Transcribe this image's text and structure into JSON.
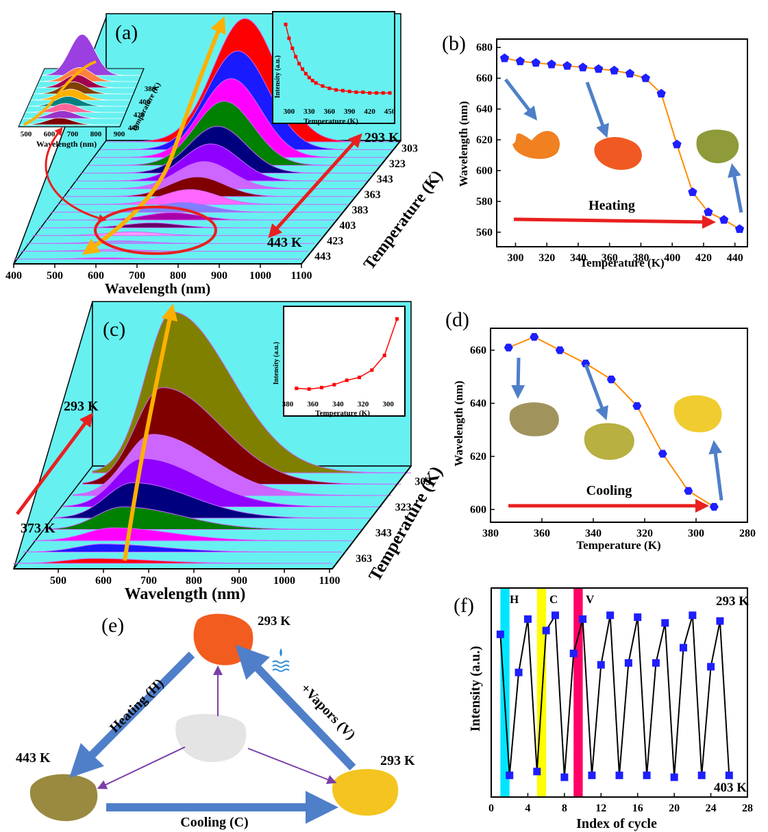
{
  "panels": {
    "a": {
      "label": "(a)",
      "marker_top": "293 K",
      "marker_bottom": "443 K",
      "xlabel": "Wavelength (nm)",
      "ylabel": "Temperature (K)",
      "xticks": [
        "400",
        "500",
        "600",
        "700",
        "800",
        "900",
        "1000",
        "1100"
      ],
      "yticks": [
        "303",
        "323",
        "343",
        "363",
        "383",
        "403",
        "423",
        "443"
      ],
      "left_inset": {
        "xlabel": "Wavelength (nm)",
        "ylabel": "Temperature (K)",
        "xticks": [
          "500",
          "600",
          "700",
          "800",
          "900"
        ],
        "yticks": [
          "380",
          "400",
          "420",
          "440"
        ]
      },
      "inset": {
        "xlabel": "Temperature (K)",
        "ylabel": "Intensity (a.u.)",
        "xticks": [
          "300",
          "330",
          "360",
          "390",
          "420",
          "450"
        ]
      }
    },
    "b": {
      "label": "(b)",
      "annotation": "Heating",
      "xlabel": "Temperature (K)",
      "ylabel": "Wavelength (nm)",
      "xticks": [
        "300",
        "320",
        "340",
        "360",
        "380",
        "400",
        "420",
        "440"
      ],
      "yticks": [
        "560",
        "580",
        "600",
        "620",
        "640",
        "660",
        "680"
      ]
    },
    "c": {
      "label": "(c)",
      "marker_top": "293 K",
      "marker_bottom": "373 K",
      "xlabel": "Wavelength (nm)",
      "ylabel": "Temperature (K)",
      "xticks": [
        "500",
        "600",
        "700",
        "800",
        "900",
        "1000",
        "1100"
      ],
      "yticks": [
        "303",
        "323",
        "343",
        "363"
      ],
      "inset": {
        "xlabel": "Temperature (K)",
        "ylabel": "Intensity (a.u.)",
        "xticks": [
          "380",
          "360",
          "340",
          "320",
          "300"
        ]
      }
    },
    "d": {
      "label": "(d)",
      "annotation": "Cooling",
      "xlabel": "Temperature (K)",
      "ylabel": "Wavelength (nm)",
      "xticks": [
        "380",
        "360",
        "340",
        "320",
        "300",
        "280"
      ],
      "yticks": [
        "600",
        "620",
        "640",
        "660"
      ]
    },
    "e": {
      "label": "(e)",
      "temp_top": "293 K",
      "temp_left": "443 K",
      "temp_right": "293 K",
      "edge_heating": "Heating (H)",
      "edge_vapors": "+Vapors (V)",
      "edge_cooling": "Cooling (C)"
    },
    "f": {
      "label": "(f)",
      "marker_h": "H",
      "marker_c": "C",
      "marker_v": "V",
      "temp_high": "293 K",
      "temp_low": "403 K",
      "xlabel": "Index of cycle",
      "ylabel": "Intensity (a.u.)",
      "xticks": [
        "0",
        "4",
        "8",
        "12",
        "16",
        "20",
        "24",
        "28"
      ]
    }
  },
  "chart_data": [
    {
      "id": "a-main",
      "type": "area",
      "x_range": [
        400,
        1100
      ],
      "temperatures": [
        293,
        303,
        313,
        323,
        333,
        343,
        353,
        363,
        373,
        383,
        393,
        403,
        413,
        423,
        433,
        443
      ],
      "peak_wavelength": [
        673,
        671,
        670,
        669,
        668,
        667,
        666,
        665,
        663,
        660,
        650,
        617,
        586,
        573,
        568,
        562
      ],
      "relative_peak_height": [
        1.0,
        0.8,
        0.64,
        0.52,
        0.38,
        0.3,
        0.22,
        0.16,
        0.12,
        0.08,
        0.06,
        0.04,
        0.03,
        0.02,
        0.015,
        0.01
      ],
      "series_colors": [
        "#ff0000",
        "#1a1aff",
        "#ff00ff",
        "#008000",
        "#00007f",
        "#8f00ff",
        "#cc66ff",
        "#800000",
        "#ff66ff",
        "#7f7fff",
        "#aa00aa",
        "#660066",
        "#ff99ff",
        "#9999ff",
        "#cc99ff",
        "#ff00ff"
      ]
    },
    {
      "id": "a-inset",
      "type": "line",
      "x": [
        295,
        300,
        305,
        310,
        315,
        320,
        325,
        330,
        335,
        340,
        350,
        360,
        370,
        380,
        390,
        400,
        410,
        420,
        430,
        440,
        450
      ],
      "y": [
        1.0,
        0.82,
        0.69,
        0.58,
        0.49,
        0.42,
        0.36,
        0.31,
        0.27,
        0.24,
        0.2,
        0.17,
        0.15,
        0.14,
        0.13,
        0.12,
        0.12,
        0.11,
        0.11,
        0.11,
        0.11
      ],
      "xlim": [
        293,
        453
      ],
      "ylim": [
        0,
        1.05
      ],
      "color": "#ff0000"
    },
    {
      "id": "b",
      "type": "line",
      "x": [
        293,
        303,
        313,
        323,
        333,
        343,
        353,
        363,
        373,
        383,
        393,
        403,
        413,
        423,
        433,
        443
      ],
      "y": [
        673,
        671,
        670,
        669,
        668,
        667,
        666,
        665,
        663,
        660,
        650,
        617,
        586,
        573,
        568,
        562
      ],
      "xlim": [
        288,
        448
      ],
      "ylim": [
        555,
        685
      ],
      "color": "#ff8c00",
      "marker_color": "#1e1eff"
    },
    {
      "id": "c-main",
      "type": "area",
      "x_range": [
        400,
        1100
      ],
      "temperatures": [
        373,
        363,
        353,
        343,
        333,
        323,
        313,
        303,
        293
      ],
      "relative_peak_height": [
        0.03,
        0.05,
        0.08,
        0.14,
        0.22,
        0.3,
        0.38,
        0.6,
        1.0
      ],
      "series_colors": [
        "#ff0000",
        "#1a1aff",
        "#ff00ff",
        "#008000",
        "#00007f",
        "#8f00ff",
        "#cc66ff",
        "#800000",
        "#808000"
      ]
    },
    {
      "id": "c-inset",
      "type": "line",
      "x": [
        373,
        363,
        353,
        343,
        333,
        323,
        313,
        303,
        293
      ],
      "y": [
        0.05,
        0.04,
        0.06,
        0.1,
        0.16,
        0.2,
        0.3,
        0.5,
        1.0
      ],
      "xlim": [
        380,
        290
      ],
      "ylim": [
        0,
        1.05
      ],
      "color": "#ff0000"
    },
    {
      "id": "d",
      "type": "line",
      "x": [
        373,
        363,
        353,
        343,
        333,
        323,
        313,
        303,
        293
      ],
      "y": [
        661,
        665,
        660,
        655,
        649,
        639,
        621,
        607,
        601
      ],
      "xlim": [
        380,
        280
      ],
      "ylim": [
        597,
        668
      ],
      "color": "#ff8c00",
      "marker_color": "#1e1eff"
    },
    {
      "id": "f",
      "type": "line",
      "x": [
        1,
        2,
        3,
        4,
        5,
        6,
        7,
        8,
        9,
        10,
        11,
        12,
        13,
        14,
        15,
        16,
        17,
        18,
        19,
        20,
        21,
        22,
        23,
        24,
        25,
        26
      ],
      "y": [
        0.8,
        0.06,
        0.6,
        0.88,
        0.08,
        0.82,
        0.9,
        0.05,
        0.7,
        0.88,
        0.06,
        0.64,
        0.9,
        0.06,
        0.65,
        0.89,
        0.06,
        0.65,
        0.86,
        0.05,
        0.73,
        0.9,
        0.06,
        0.63,
        0.87,
        0.06
      ],
      "xlim": [
        0,
        28
      ],
      "ylim": [
        0,
        1.0
      ],
      "color": "#000000",
      "marker_color": "#1e1eff",
      "bands": [
        {
          "x": [
            1,
            2
          ],
          "color": "#00e5ff"
        },
        {
          "x": [
            5,
            6
          ],
          "color": "#ffff00"
        },
        {
          "x": [
            9,
            10
          ],
          "color": "#ff0066"
        }
      ]
    }
  ]
}
